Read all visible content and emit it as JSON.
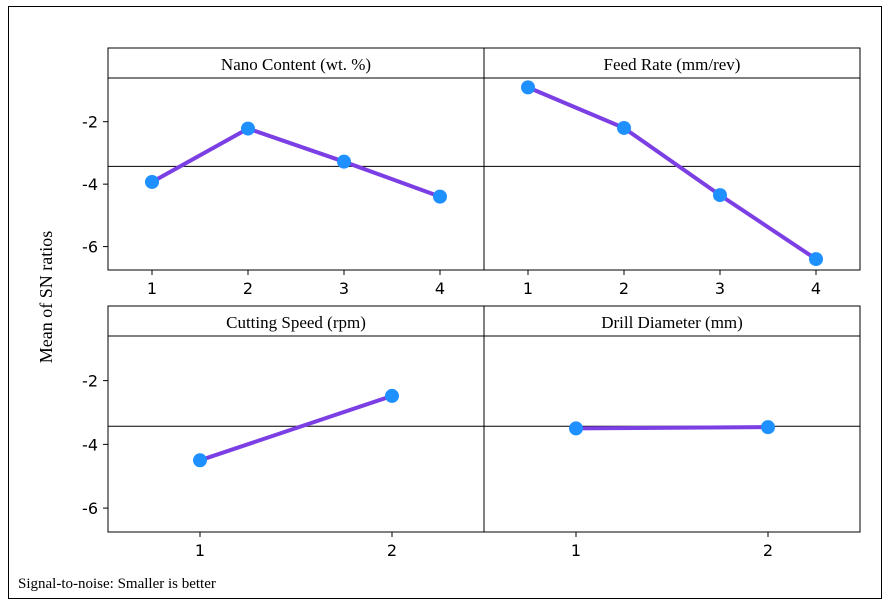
{
  "figure": {
    "ylabel": "Mean of SN ratios",
    "footnote": "Signal-to-noise: Smaller is better",
    "mean_line": -3.43,
    "ylim": [
      -6.75,
      -0.6
    ],
    "y_ticks": [
      -2,
      -4,
      -6
    ],
    "y_tick_labels": [
      "-2",
      "-4",
      "-6"
    ]
  },
  "colors": {
    "line": "#7B3FE4",
    "marker": "#1E90FF",
    "reference": "#000000"
  },
  "chart_data": [
    {
      "type": "line",
      "title": "Nano Content (wt. %)",
      "categories": [
        "1",
        "2",
        "3",
        "4"
      ],
      "values": [
        -3.93,
        -2.22,
        -3.28,
        -4.4
      ]
    },
    {
      "type": "line",
      "title": "Feed Rate (mm/rev)",
      "categories": [
        "1",
        "2",
        "3",
        "4"
      ],
      "values": [
        -0.9,
        -2.2,
        -4.35,
        -6.4
      ]
    },
    {
      "type": "line",
      "title": "Cutting Speed (rpm)",
      "categories": [
        "1",
        "2"
      ],
      "values": [
        -4.5,
        -2.48
      ]
    },
    {
      "type": "line",
      "title": "Drill Diameter (mm)",
      "categories": [
        "1",
        "2"
      ],
      "values": [
        -3.5,
        -3.46
      ]
    }
  ]
}
